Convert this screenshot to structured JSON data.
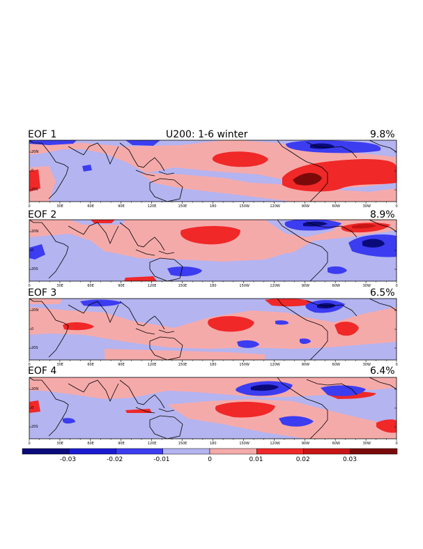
{
  "figure": {
    "title": "U200: 1-6 winter",
    "panels": [
      {
        "label": "EOF 1",
        "variance": "9.8%"
      },
      {
        "label": "EOF 2",
        "variance": "8.9%"
      },
      {
        "label": "EOF 3",
        "variance": "6.5%"
      },
      {
        "label": "EOF 4",
        "variance": "6.4%"
      }
    ],
    "lon_ticks": [
      "0",
      "30E",
      "60E",
      "90E",
      "120E",
      "150E",
      "180",
      "150W",
      "120W",
      "90W",
      "60W",
      "30W",
      "0"
    ],
    "lat_ticks": [
      "20N",
      "0",
      "20S"
    ]
  },
  "colorbar": {
    "labels": [
      "-0.03",
      "-0.02",
      "-0.01",
      "0",
      "0.01",
      "0.02",
      "0.03"
    ],
    "colors": [
      "#0a0a7a",
      "#1a1ad2",
      "#3c3cf0",
      "#b4b4f0",
      "#f5aaaa",
      "#f02828",
      "#c81414",
      "#7a0a0a"
    ]
  },
  "palette": {
    "neg_light": "#b4b4f0",
    "neg_mid": "#3c3cf0",
    "neg_strong": "#0a0a7a",
    "pos_light": "#f5aaaa",
    "pos_mid": "#f02828",
    "pos_strong": "#7a0a0a"
  }
}
